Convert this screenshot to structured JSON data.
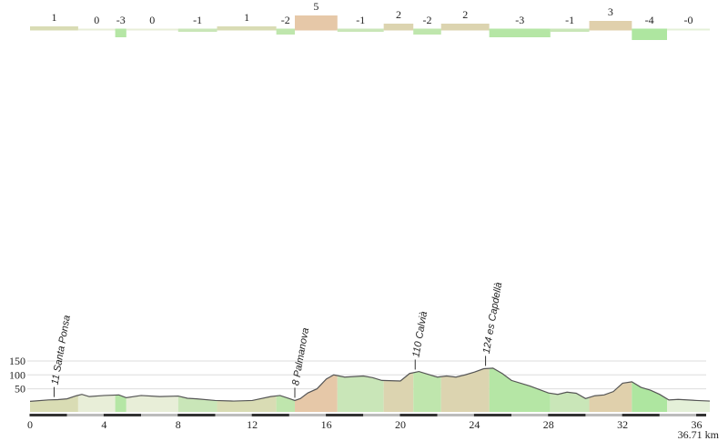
{
  "chart_data": [
    {
      "type": "gradient-bar",
      "edges": [
        0,
        2.6,
        4.6,
        5.2,
        8.0,
        10.1,
        13.3,
        14.3,
        16.6,
        19.1,
        20.7,
        22.2,
        24.8,
        28.1,
        30.2,
        32.5,
        34.4,
        36.71
      ],
      "values": [
        1,
        0,
        -3,
        0,
        -1,
        1,
        -2,
        5,
        -1,
        2,
        -2,
        2,
        -3,
        -1,
        3,
        -4,
        0
      ],
      "value_labels": [
        "1",
        "0",
        "-3",
        "0",
        "-1",
        "1",
        "-2",
        "5",
        "-1",
        "2",
        "-2",
        "2",
        "-3",
        "-1",
        "3",
        "-4",
        "-0"
      ],
      "colors": [
        "#d9dcb4",
        "#e8eed8",
        "#b5e6a5",
        "#e8eed8",
        "#c9e6b8",
        "#d9dcb4",
        "#bfe6ad",
        "#e6c8a8",
        "#c9e6b8",
        "#dcd4b0",
        "#bfe6ad",
        "#dcd4b0",
        "#b5e6a5",
        "#c9e6b8",
        "#e0d0ac",
        "#aee6a0",
        "#e4f0d8"
      ]
    },
    {
      "type": "area",
      "x": [
        0,
        1,
        1.5,
        2,
        2.5,
        2.8,
        3.2,
        4,
        4.8,
        5.2,
        6,
        7,
        8,
        8.5,
        9,
        10,
        11,
        12,
        13,
        13.5,
        14,
        14.3,
        14.6,
        15,
        15.5,
        16,
        16.4,
        17,
        18,
        18.5,
        19,
        20,
        20.5,
        21,
        21.5,
        22,
        22.5,
        23,
        23.5,
        24,
        24.5,
        25,
        25.5,
        26,
        27,
        28,
        28.5,
        29,
        29.5,
        30,
        30.5,
        31,
        31.5,
        32,
        32.5,
        33,
        33.5,
        34,
        34.5,
        35,
        36,
        36.71
      ],
      "values": [
        5,
        10,
        11,
        14,
        25,
        30,
        22,
        26,
        28,
        18,
        26,
        22,
        24,
        16,
        14,
        8,
        6,
        8,
        22,
        26,
        15,
        8,
        15,
        35,
        50,
        85,
        100,
        92,
        96,
        90,
        80,
        78,
        105,
        112,
        102,
        92,
        96,
        92,
        100,
        110,
        122,
        124,
        105,
        80,
        60,
        35,
        30,
        38,
        34,
        15,
        25,
        28,
        40,
        70,
        75,
        55,
        45,
        30,
        10,
        12,
        8,
        6
      ],
      "color": "#555555",
      "xlim": [
        0,
        36.71
      ],
      "ylim": [
        -33,
        300
      ],
      "xticks": [
        0,
        4,
        8,
        12,
        16,
        20,
        24,
        28,
        32,
        36
      ],
      "yticks": [
        50,
        100,
        150
      ],
      "grid": true,
      "x_label": "36.71 km",
      "annotations": [
        {
          "x": 1.3,
          "text": "11 Santa Ponsa"
        },
        {
          "x": 14.3,
          "text": "8 Palmanova"
        },
        {
          "x": 20.8,
          "text": "110 Calvià"
        },
        {
          "x": 24.6,
          "text": "124 es Capdellà"
        }
      ]
    }
  ]
}
